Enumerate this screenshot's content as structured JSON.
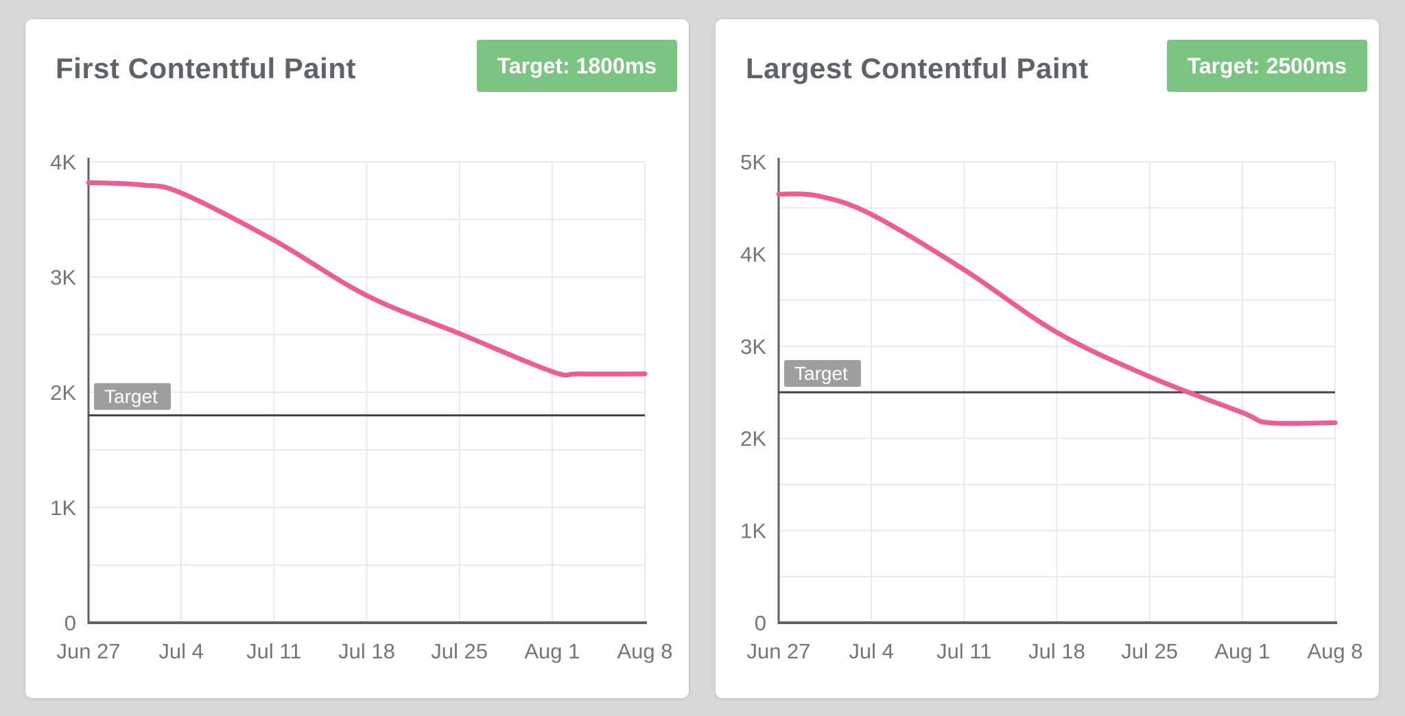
{
  "page": {
    "background_color": "#d8d8d8"
  },
  "colors": {
    "card_bg": "#ffffff",
    "title_text": "#5f6368",
    "badge_bg": "#7cc482",
    "badge_text": "#ffffff",
    "line_pink": "#ee5d8f",
    "grid": "#e9e9e9",
    "axis": "#616161",
    "tick_label": "#757575",
    "target_line": "#424242",
    "target_label_bg": "#9e9e9e",
    "target_label_text": "#ffffff"
  },
  "cards": [
    {
      "title": "First Contentful Paint",
      "badge": "Target: 1800ms"
    },
    {
      "title": "Largest Contentful Paint",
      "badge": "Target: 2500ms"
    }
  ],
  "chart_data": [
    {
      "type": "line",
      "title": "First Contentful Paint",
      "target_badge": "Target: 1800ms",
      "target": {
        "label": "Target",
        "value": 1800
      },
      "x_tick_days": [
        0,
        7,
        14,
        21,
        28,
        35,
        42
      ],
      "x_tick_labels": [
        "Jun 27",
        "Jul 4",
        "Jul 11",
        "Jul 18",
        "Jul 25",
        "Aug 1",
        "Aug 8"
      ],
      "ylim": [
        0,
        4000
      ],
      "y_tick_step": 1000,
      "y_grid_step": 500,
      "y_tick_labels": [
        "0",
        "1K",
        "2K",
        "3K",
        "4K"
      ],
      "grid": true,
      "legend": false,
      "series": [
        {
          "name": "First Contentful Paint (ms)",
          "color": "#ee5d8f",
          "points_day_value": [
            [
              0,
              3820
            ],
            [
              4,
              3800
            ],
            [
              7,
              3730
            ],
            [
              14,
              3320
            ],
            [
              21,
              2840
            ],
            [
              28,
              2510
            ],
            [
              35,
              2180
            ],
            [
              37,
              2160
            ],
            [
              42,
              2160
            ]
          ]
        }
      ]
    },
    {
      "type": "line",
      "title": "Largest Contentful Paint",
      "target_badge": "Target: 2500ms",
      "target": {
        "label": "Target",
        "value": 2500
      },
      "x_tick_days": [
        0,
        7,
        14,
        21,
        28,
        35,
        42
      ],
      "x_tick_labels": [
        "Jun 27",
        "Jul 4",
        "Jul 11",
        "Jul 18",
        "Jul 25",
        "Aug 1",
        "Aug 8"
      ],
      "ylim": [
        0,
        5000
      ],
      "y_tick_step": 1000,
      "y_grid_step": 500,
      "y_tick_labels": [
        "0",
        "1K",
        "2K",
        "3K",
        "4K",
        "5K"
      ],
      "grid": true,
      "legend": false,
      "series": [
        {
          "name": "Largest Contentful Paint (ms)",
          "color": "#ee5d8f",
          "points_day_value": [
            [
              0,
              4650
            ],
            [
              3,
              4630
            ],
            [
              7,
              4430
            ],
            [
              14,
              3830
            ],
            [
              21,
              3150
            ],
            [
              28,
              2670
            ],
            [
              35,
              2280
            ],
            [
              37,
              2170
            ],
            [
              42,
              2170
            ]
          ]
        }
      ]
    }
  ]
}
